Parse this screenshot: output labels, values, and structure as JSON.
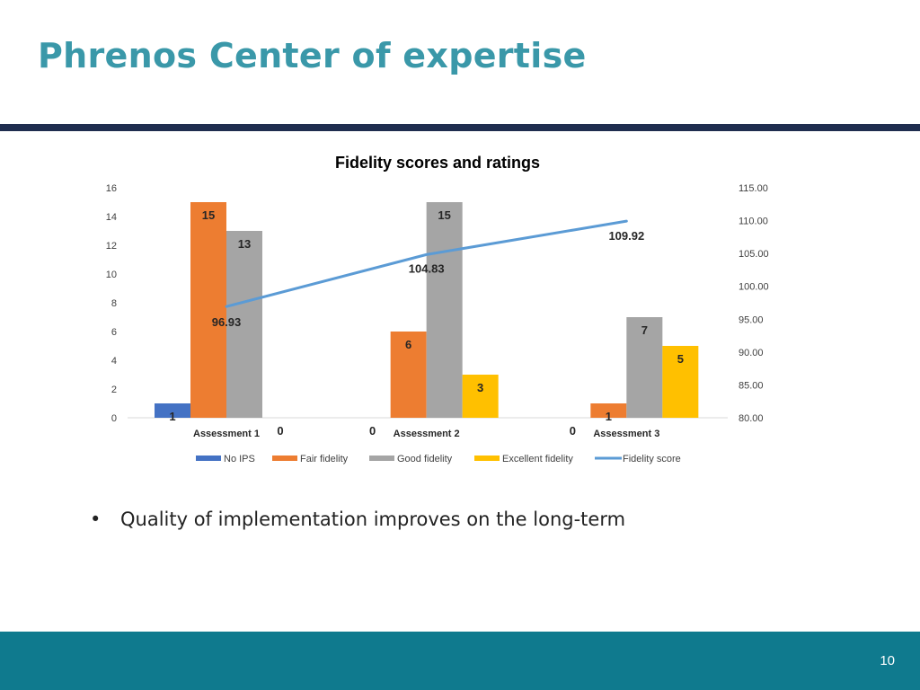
{
  "slide": {
    "title": "Phrenos Center of expertise",
    "bullet_symbol": "•",
    "bullet_text": "Quality of implementation improves on the long-term",
    "page_number": "10"
  },
  "colors": {
    "title": "#3a98a9",
    "rule": "#1f2d4f",
    "footer": "#0f7a8e",
    "no_ips": "#4472c4",
    "fair": "#ed7d31",
    "good": "#a5a5a5",
    "excellent": "#ffc000",
    "score_line": "#5b9bd5"
  },
  "chart_data": {
    "type": "bar",
    "title": "Fidelity scores and ratings",
    "categories": [
      "Assessment 1",
      "Assessment 2",
      "Assessment 3"
    ],
    "ylim": [
      0,
      16
    ],
    "y_ticks": [
      "0",
      "2",
      "4",
      "6",
      "8",
      "10",
      "12",
      "14",
      "16"
    ],
    "y2lim": [
      80,
      115
    ],
    "y2_ticks": [
      "80.00",
      "85.00",
      "90.00",
      "95.00",
      "100.00",
      "105.00",
      "110.00",
      "115.00"
    ],
    "grid": false,
    "legend_position": "bottom",
    "series": [
      {
        "name": "No IPS",
        "type": "bar",
        "color": "#4472c4",
        "values": [
          1,
          0,
          0
        ],
        "labels": [
          "1",
          "0",
          "0"
        ]
      },
      {
        "name": "Fair fidelity",
        "type": "bar",
        "color": "#ed7d31",
        "values": [
          15,
          6,
          1
        ],
        "labels": [
          "15",
          "6",
          "1"
        ]
      },
      {
        "name": "Good fidelity",
        "type": "bar",
        "color": "#a5a5a5",
        "values": [
          13,
          15,
          7
        ],
        "labels": [
          "13",
          "15",
          "7"
        ]
      },
      {
        "name": "Excellent fidelity",
        "type": "bar",
        "color": "#ffc000",
        "values": [
          0,
          3,
          5
        ],
        "labels": [
          "0",
          "3",
          "5"
        ]
      },
      {
        "name": "Fidelity score",
        "type": "line",
        "axis": "secondary",
        "color": "#5b9bd5",
        "values": [
          96.93,
          104.83,
          109.92
        ],
        "labels": [
          "96.93",
          "104.83",
          "109.92"
        ]
      }
    ]
  }
}
